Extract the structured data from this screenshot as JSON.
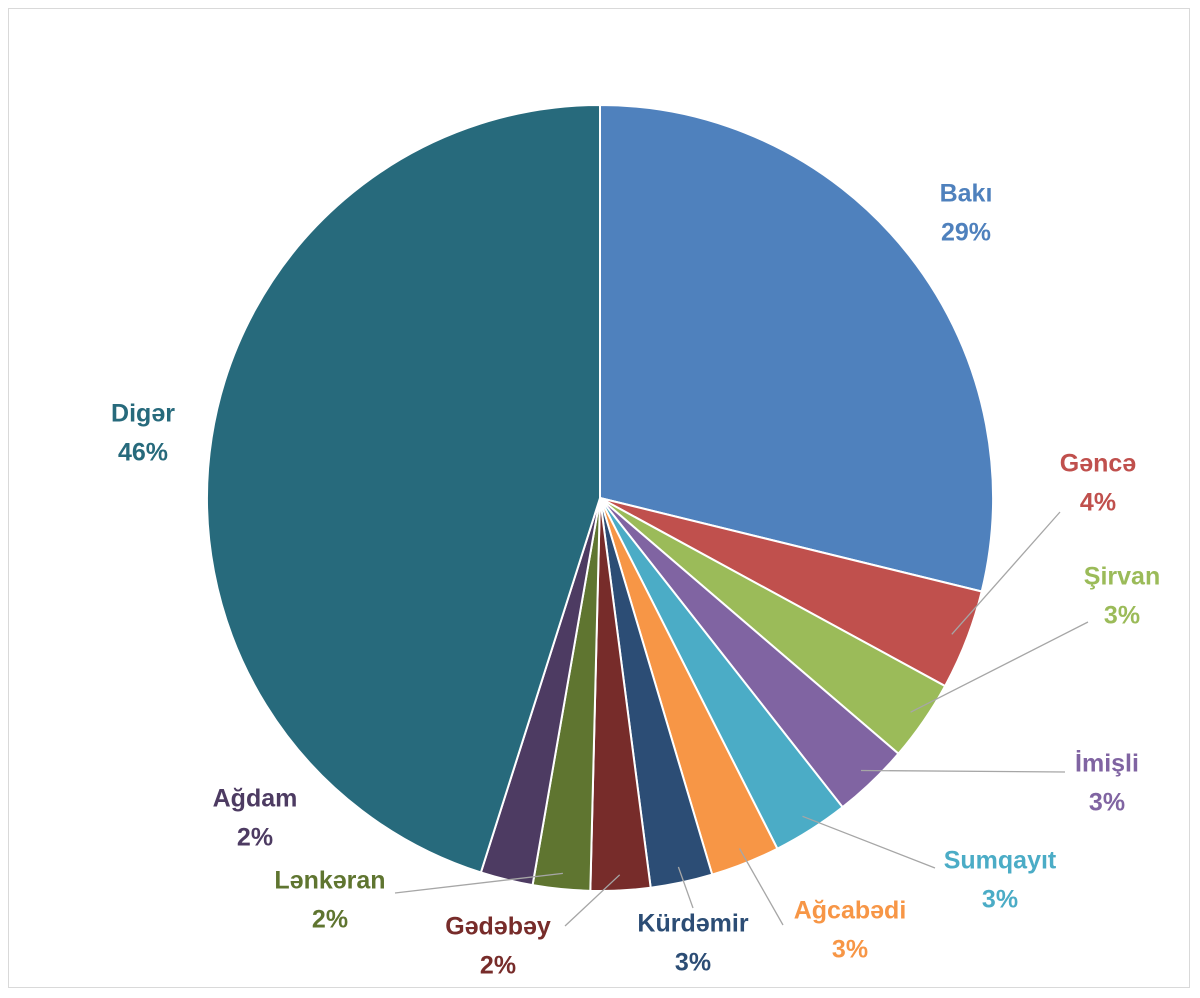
{
  "chart_data": {
    "type": "pie",
    "title": "",
    "start_angle_deg": 0,
    "direction": "clockwise",
    "slices": [
      {
        "name": "Bakı",
        "value": 29.4,
        "label": "29%",
        "color": "#4f81bd"
      },
      {
        "name": "Gəncə",
        "value": 4.2,
        "label": "4%",
        "color": "#c0504d"
      },
      {
        "name": "Şirvan",
        "value": 3.4,
        "label": "3%",
        "color": "#9bbb59"
      },
      {
        "name": "İmişli",
        "value": 3.2,
        "label": "3%",
        "color": "#8064a2"
      },
      {
        "name": "Sumqayıt",
        "value": 3.2,
        "label": "3%",
        "color": "#4bacc6"
      },
      {
        "name": "Ağcabədi",
        "value": 2.9,
        "label": "3%",
        "color": "#f79646"
      },
      {
        "name": "Kürdəmir",
        "value": 2.6,
        "label": "3%",
        "color": "#2c4d75"
      },
      {
        "name": "Gədəbəy",
        "value": 2.5,
        "label": "2%",
        "color": "#772c2a"
      },
      {
        "name": "Lənkəran",
        "value": 2.4,
        "label": "2%",
        "color": "#5f7530"
      },
      {
        "name": "Ağdam",
        "value": 2.2,
        "label": "2%",
        "color": "#4d3b62"
      },
      {
        "name": "Digər",
        "value": 46.0,
        "label": "46%",
        "color": "#276a7c"
      }
    ]
  }
}
